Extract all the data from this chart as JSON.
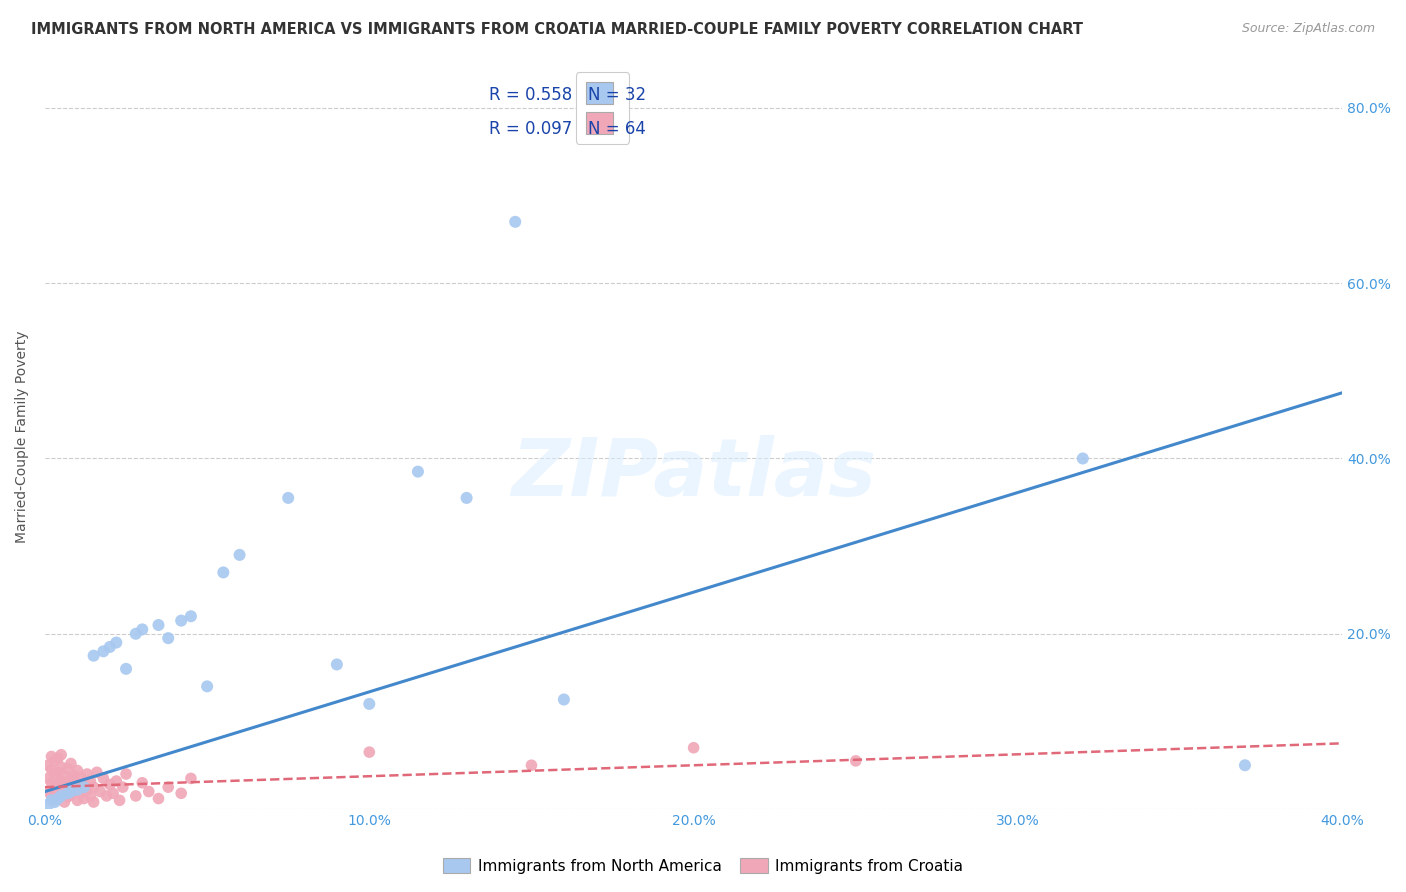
{
  "title": "IMMIGRANTS FROM NORTH AMERICA VS IMMIGRANTS FROM CROATIA MARRIED-COUPLE FAMILY POVERTY CORRELATION CHART",
  "source": "Source: ZipAtlas.com",
  "ylabel": "Married-Couple Family Poverty",
  "xlim": [
    0.0,
    0.4
  ],
  "ylim": [
    0.0,
    0.85
  ],
  "color_na": "#a8c8f0",
  "color_croatia": "#f0a8b8",
  "line_color_na": "#4488cc",
  "line_color_croatia": "#e06878",
  "title_color": "#333333",
  "source_color": "#999999",
  "axis_label_color": "#555555",
  "tick_color": "#4499dd",
  "legend_text_color": "#1a44aa",
  "R_na": 0.558,
  "N_na": 32,
  "R_croatia": 0.097,
  "N_croatia": 64,
  "na_x": [
    0.001,
    0.002,
    0.003,
    0.004,
    0.005,
    0.007,
    0.008,
    0.01,
    0.012,
    0.015,
    0.018,
    0.02,
    0.022,
    0.025,
    0.028,
    0.03,
    0.035,
    0.038,
    0.042,
    0.045,
    0.05,
    0.055,
    0.06,
    0.075,
    0.09,
    0.1,
    0.115,
    0.13,
    0.145,
    0.16,
    0.32,
    0.37
  ],
  "na_y": [
    0.005,
    0.01,
    0.008,
    0.012,
    0.015,
    0.018,
    0.02,
    0.022,
    0.025,
    0.175,
    0.18,
    0.185,
    0.19,
    0.16,
    0.2,
    0.205,
    0.21,
    0.195,
    0.215,
    0.22,
    0.14,
    0.27,
    0.29,
    0.355,
    0.165,
    0.12,
    0.385,
    0.355,
    0.67,
    0.125,
    0.4,
    0.05
  ],
  "croatia_x": [
    0.001,
    0.001,
    0.001,
    0.002,
    0.002,
    0.002,
    0.002,
    0.003,
    0.003,
    0.003,
    0.003,
    0.004,
    0.004,
    0.004,
    0.004,
    0.005,
    0.005,
    0.005,
    0.005,
    0.006,
    0.006,
    0.006,
    0.007,
    0.007,
    0.007,
    0.008,
    0.008,
    0.008,
    0.009,
    0.009,
    0.01,
    0.01,
    0.01,
    0.011,
    0.011,
    0.012,
    0.012,
    0.013,
    0.013,
    0.014,
    0.014,
    0.015,
    0.015,
    0.016,
    0.017,
    0.018,
    0.019,
    0.02,
    0.021,
    0.022,
    0.023,
    0.024,
    0.025,
    0.028,
    0.03,
    0.032,
    0.035,
    0.038,
    0.042,
    0.045,
    0.1,
    0.15,
    0.2,
    0.25
  ],
  "croatia_y": [
    0.02,
    0.035,
    0.05,
    0.015,
    0.03,
    0.045,
    0.06,
    0.01,
    0.025,
    0.04,
    0.055,
    0.012,
    0.028,
    0.042,
    0.058,
    0.018,
    0.032,
    0.048,
    0.062,
    0.008,
    0.022,
    0.038,
    0.014,
    0.03,
    0.046,
    0.016,
    0.034,
    0.052,
    0.02,
    0.038,
    0.01,
    0.026,
    0.044,
    0.018,
    0.036,
    0.012,
    0.03,
    0.022,
    0.04,
    0.015,
    0.032,
    0.008,
    0.025,
    0.042,
    0.02,
    0.035,
    0.015,
    0.028,
    0.018,
    0.032,
    0.01,
    0.025,
    0.04,
    0.015,
    0.03,
    0.02,
    0.012,
    0.025,
    0.018,
    0.035,
    0.065,
    0.05,
    0.07,
    0.055
  ],
  "na_trend_x": [
    0.0,
    0.4
  ],
  "na_trend_y": [
    0.02,
    0.475
  ],
  "cr_trend_x": [
    0.0,
    0.4
  ],
  "cr_trend_y": [
    0.025,
    0.075
  ],
  "watermark": "ZIPatlas",
  "background_color": "#ffffff",
  "grid_color": "#cccccc",
  "legend_label_na": "Immigrants from North America",
  "legend_label_croatia": "Immigrants from Croatia"
}
